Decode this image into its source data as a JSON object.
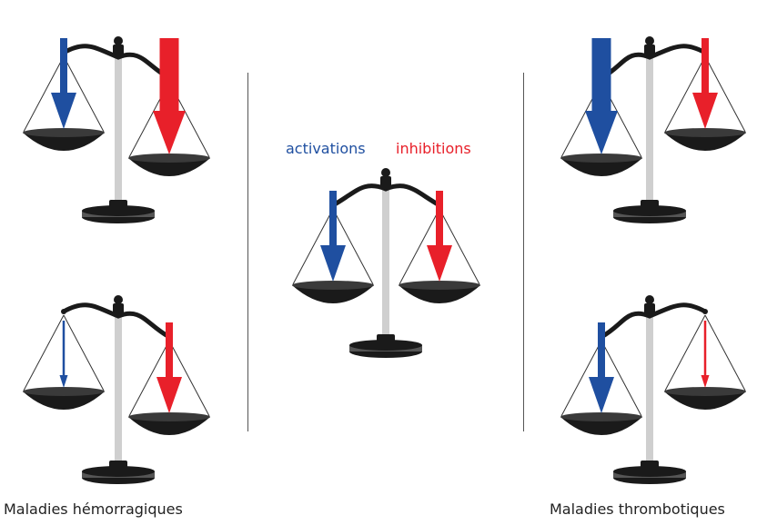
{
  "colors": {
    "activation": "#1f4fa0",
    "inhibition": "#e8202a",
    "scale_dark": "#1a1a1a",
    "pan": "#3a3a3a",
    "pillar": "#cfcfcf"
  },
  "legend": {
    "activations": "activations",
    "inhibitions": "inhibitions"
  },
  "captions": {
    "left": "Maladies hémorragiques",
    "right": "Maladies thrombotiques"
  },
  "scales": [
    {
      "id": "top-left",
      "group": "left",
      "tilt": "right-down",
      "activation": "large",
      "inhibition": "very-large"
    },
    {
      "id": "bottom-left",
      "group": "left",
      "tilt": "right-down",
      "activation": "small",
      "inhibition": "large"
    },
    {
      "id": "center",
      "group": "center",
      "tilt": "level",
      "activation": "large",
      "inhibition": "large"
    },
    {
      "id": "top-right",
      "group": "right",
      "tilt": "left-down",
      "activation": "very-large",
      "inhibition": "large"
    },
    {
      "id": "bottom-right",
      "group": "right",
      "tilt": "left-down",
      "activation": "large",
      "inhibition": "small"
    }
  ]
}
